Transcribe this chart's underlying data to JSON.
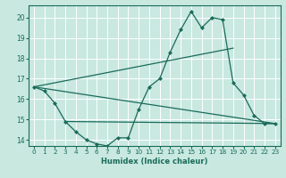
{
  "x": [
    0,
    1,
    2,
    3,
    4,
    5,
    6,
    7,
    8,
    9,
    10,
    11,
    12,
    13,
    14,
    15,
    16,
    17,
    18,
    19,
    20,
    21,
    22,
    23
  ],
  "y_main": [
    16.6,
    16.4,
    15.8,
    14.9,
    14.4,
    14.0,
    13.8,
    13.7,
    14.1,
    14.1,
    15.5,
    16.6,
    17.0,
    18.3,
    19.4,
    20.3,
    19.5,
    20.0,
    19.9,
    16.8,
    16.2,
    15.2,
    14.8,
    14.8
  ],
  "straight_line1_x": [
    0,
    19
  ],
  "straight_line1_y": [
    16.6,
    18.5
  ],
  "straight_line2_x": [
    3,
    23
  ],
  "straight_line2_y": [
    14.9,
    14.8
  ],
  "straight_line3_x": [
    0,
    23
  ],
  "straight_line3_y": [
    16.6,
    14.8
  ],
  "bg_color": "#c8e8e0",
  "line_color": "#1a6b5a",
  "grid_color": "#ffffff",
  "xlabel": "Humidex (Indice chaleur)",
  "ylim": [
    13.7,
    20.6
  ],
  "xlim": [
    -0.5,
    23.5
  ],
  "yticks": [
    14,
    15,
    16,
    17,
    18,
    19,
    20
  ],
  "xticks": [
    0,
    1,
    2,
    3,
    4,
    5,
    6,
    7,
    8,
    9,
    10,
    11,
    12,
    13,
    14,
    15,
    16,
    17,
    18,
    19,
    20,
    21,
    22,
    23
  ],
  "xlabel_fontsize": 6.0,
  "tick_fontsize": 5.2
}
